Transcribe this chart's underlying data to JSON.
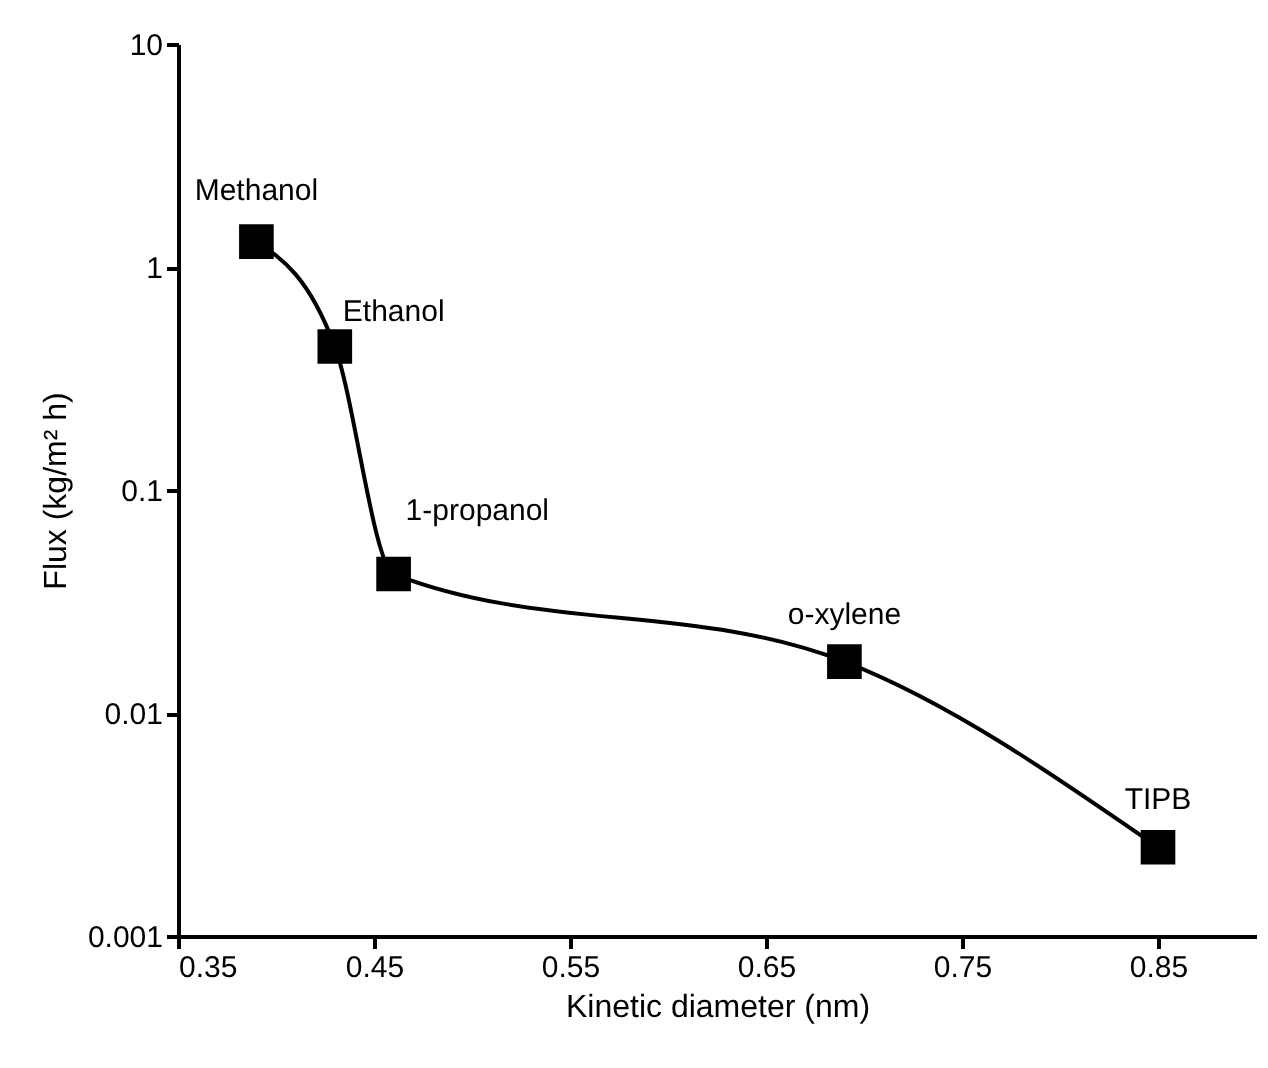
{
  "chart_data": {
    "type": "line",
    "xlabel": "Kinetic diameter (nm)",
    "ylabel": "Flux (kg/m² h)",
    "x": [
      0.39,
      0.43,
      0.46,
      0.69,
      0.85
    ],
    "series": [
      {
        "color": "#000000",
        "values": [
          1.3,
          0.44,
          0.042,
          0.017,
          0.0025
        ]
      }
    ],
    "xlim": [
      0.35,
      0.9
    ],
    "xticks": [
      0.35,
      0.45,
      0.55,
      0.65,
      0.75,
      0.85
    ],
    "ylim": [
      0.001,
      10
    ],
    "yticks": [
      0.001,
      0.01,
      0.1,
      1,
      10
    ],
    "log": "y",
    "grid": false,
    "marker": "square",
    "line_style": "solid",
    "annotations": [
      {
        "text": "Methanol",
        "x": 0.39,
        "y": 1.3
      },
      {
        "text": "Ethanol",
        "x": 0.43,
        "y": 0.44
      },
      {
        "text": "1-propanol",
        "x": 0.46,
        "y": 0.042
      },
      {
        "text": "o-xylene",
        "x": 0.69,
        "y": 0.017
      },
      {
        "text": "TIPB",
        "x": 0.85,
        "y": 0.0025
      }
    ]
  }
}
